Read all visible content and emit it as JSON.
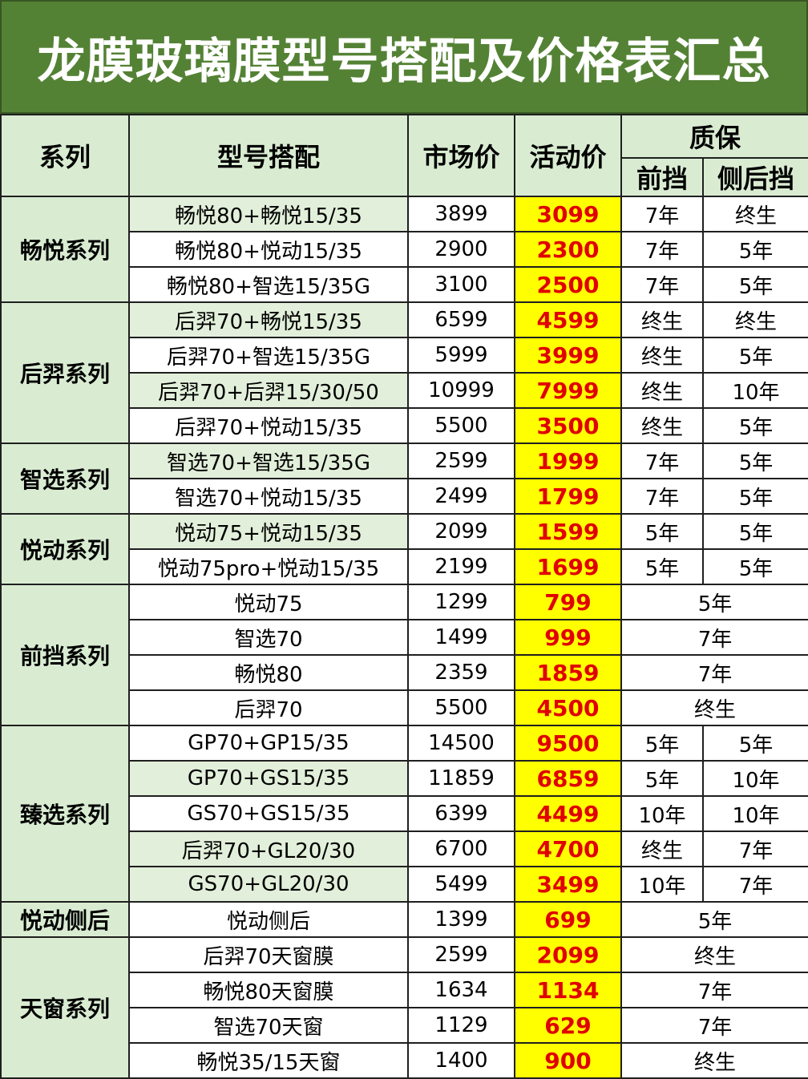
{
  "title": "龙膜玻璃膜型号搭配及价格表汇总",
  "headers": {
    "series": "系列",
    "model": "型号搭配",
    "market_price": "市场价",
    "promo_price": "活动价",
    "warranty": "质保",
    "front": "前挡",
    "side_rear": "侧后挡"
  },
  "groups": [
    {
      "name": "畅悦系列",
      "rows": [
        {
          "model": "畅悦80+畅悦15/35",
          "market": "3899",
          "promo": "3099",
          "front": "7年",
          "side": "终生",
          "shade": true
        },
        {
          "model": "畅悦80+悦动15/35",
          "market": "2900",
          "promo": "2300",
          "front": "7年",
          "side": "5年"
        },
        {
          "model": "畅悦80+智选15/35G",
          "market": "3100",
          "promo": "2500",
          "front": "7年",
          "side": "5年"
        }
      ]
    },
    {
      "name": "后羿系列",
      "rows": [
        {
          "model": "后羿70+畅悦15/35",
          "market": "6599",
          "promo": "4599",
          "front": "终生",
          "side": "终生",
          "shade": true
        },
        {
          "model": "后羿70+智选15/35G",
          "market": "5999",
          "promo": "3999",
          "front": "终生",
          "side": "5年"
        },
        {
          "model": "后羿70+后羿15/30/50",
          "market": "10999",
          "promo": "7999",
          "front": "终生",
          "side": "10年",
          "shade": true
        },
        {
          "model": "后羿70+悦动15/35",
          "market": "5500",
          "promo": "3500",
          "front": "终生",
          "side": "5年"
        }
      ]
    },
    {
      "name": "智选系列",
      "rows": [
        {
          "model": "智选70+智选15/35G",
          "market": "2599",
          "promo": "1999",
          "front": "7年",
          "side": "5年",
          "shade": true
        },
        {
          "model": "智选70+悦动15/35",
          "market": "2499",
          "promo": "1799",
          "front": "7年",
          "side": "5年"
        }
      ]
    },
    {
      "name": "悦动系列",
      "rows": [
        {
          "model": "悦动75+悦动15/35",
          "market": "2099",
          "promo": "1599",
          "front": "5年",
          "side": "5年",
          "shade": true
        },
        {
          "model": "悦动75pro+悦动15/35",
          "market": "2199",
          "promo": "1699",
          "front": "5年",
          "side": "5年"
        }
      ]
    },
    {
      "name": "前挡系列",
      "rows": [
        {
          "model": "悦动75",
          "market": "1299",
          "promo": "799",
          "warranty": "5年"
        },
        {
          "model": "智选70",
          "market": "1499",
          "promo": "999",
          "warranty": "7年"
        },
        {
          "model": "畅悦80",
          "market": "2359",
          "promo": "1859",
          "warranty": "7年"
        },
        {
          "model": "后羿70",
          "market": "5500",
          "promo": "4500",
          "warranty": "终生"
        }
      ]
    },
    {
      "name": "臻选系列",
      "rows": [
        {
          "model": "GP70+GP15/35",
          "market": "14500",
          "promo": "9500",
          "front": "5年",
          "side": "5年"
        },
        {
          "model": "GP70+GS15/35",
          "market": "11859",
          "promo": "6859",
          "front": "5年",
          "side": "10年",
          "shade": true
        },
        {
          "model": "GS70+GS15/35",
          "market": "6399",
          "promo": "4499",
          "front": "10年",
          "side": "10年"
        },
        {
          "model": "后羿70+GL20/30",
          "market": "6700",
          "promo": "4700",
          "front": "终生",
          "side": "7年",
          "shade": true
        },
        {
          "model": "GS70+GL20/30",
          "market": "5499",
          "promo": "3499",
          "front": "10年",
          "side": "7年",
          "shade": true
        }
      ]
    },
    {
      "name": "悦动侧后",
      "rows": [
        {
          "model": "悦动侧后",
          "market": "1399",
          "promo": "699",
          "warranty": "5年"
        }
      ]
    },
    {
      "name": "天窗系列",
      "rows": [
        {
          "model": "后羿70天窗膜",
          "market": "2599",
          "promo": "2099",
          "warranty": "终生"
        },
        {
          "model": "畅悦80天窗膜",
          "market": "1634",
          "promo": "1134",
          "warranty": "7年"
        },
        {
          "model": "智选70天窗",
          "market": "1129",
          "promo": "629",
          "warranty": "7年"
        },
        {
          "model": "畅悦35/15天窗",
          "market": "1400",
          "promo": "900",
          "warranty": "终生"
        }
      ]
    }
  ]
}
